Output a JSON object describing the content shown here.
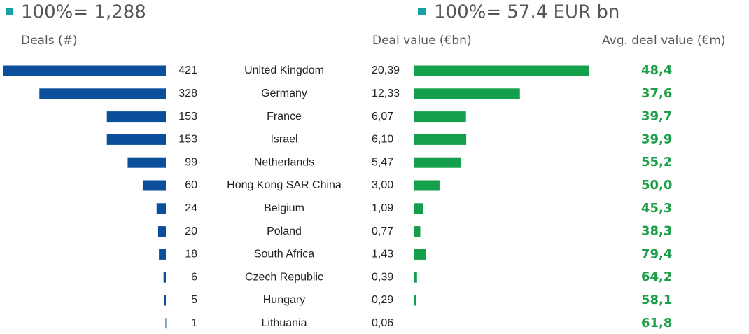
{
  "chart_data": [
    {
      "type": "bar",
      "title": "100%= 1,288",
      "x_label": "Deals (#)",
      "color": "#0b4f9c",
      "marker_color": "#17a2a6",
      "categories": [
        "United Kingdom",
        "Germany",
        "France",
        "Israel",
        "Netherlands",
        "Hong Kong SAR China",
        "Belgium",
        "Poland",
        "South Africa",
        "Czech Republic",
        "Hungary",
        "Lithuania"
      ],
      "values": [
        421,
        328,
        153,
        153,
        99,
        60,
        24,
        20,
        18,
        6,
        5,
        1
      ]
    },
    {
      "type": "bar",
      "title": "100%= 57.4 EUR bn",
      "x_label": "Deal value (€bn)",
      "color": "#14a04a",
      "marker_color": "#17a2a6",
      "values": [
        20.39,
        12.33,
        6.07,
        6.1,
        5.47,
        3.0,
        1.09,
        0.77,
        1.43,
        0.39,
        0.29,
        0.06
      ],
      "value_labels": [
        "20,39",
        "12,33",
        "6,07",
        "6,10",
        "5,47",
        "3,00",
        "1,09",
        "0,77",
        "1,43",
        "0,39",
        "0,29",
        "0,06"
      ]
    },
    {
      "type": "table",
      "title": "Avg. deal value (€m)",
      "color": "#1b9e47",
      "values": [
        48.4,
        37.6,
        39.7,
        39.9,
        55.2,
        50.0,
        45.3,
        38.3,
        79.4,
        64.2,
        58.1,
        61.8
      ],
      "value_labels": [
        "48,4",
        "37,6",
        "39,7",
        "39,9",
        "55,2",
        "50,0",
        "45,3",
        "38,3",
        "79,4",
        "64,2",
        "58,1",
        "61,8"
      ]
    }
  ]
}
